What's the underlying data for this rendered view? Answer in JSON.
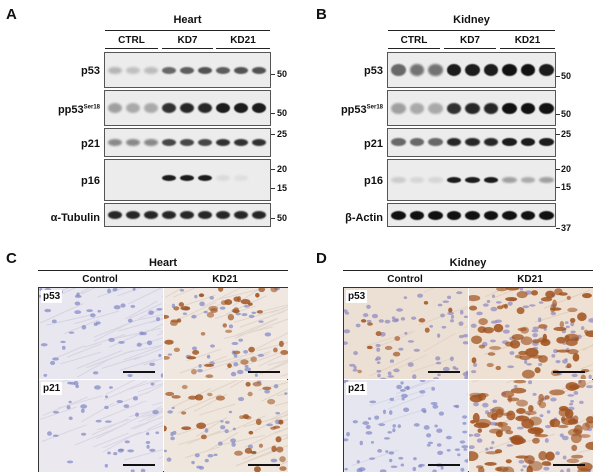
{
  "panels": {
    "A": {
      "letter": "A",
      "title": "Heart",
      "groups": [
        "CTRL",
        "KD7",
        "KD21"
      ],
      "rows": [
        {
          "label": "p53",
          "sup": "",
          "mw": [
            "50"
          ]
        },
        {
          "label": "pp53",
          "sup": "Ser18",
          "mw": [
            "50"
          ]
        },
        {
          "label": "p21",
          "sup": "",
          "mw": [
            "25"
          ]
        },
        {
          "label": "p16",
          "sup": "",
          "mw": [
            "20",
            "15"
          ]
        },
        {
          "label": "α-Tubulin",
          "sup": "",
          "mw": [
            "50"
          ]
        }
      ]
    },
    "B": {
      "letter": "B",
      "title": "Kidney",
      "groups": [
        "CTRL",
        "KD7",
        "KD21"
      ],
      "rows": [
        {
          "label": "p53",
          "sup": "",
          "mw": [
            "50"
          ]
        },
        {
          "label": "pp53",
          "sup": "Ser18",
          "mw": [
            "50"
          ]
        },
        {
          "label": "p21",
          "sup": "",
          "mw": [
            "25"
          ]
        },
        {
          "label": "p16",
          "sup": "",
          "mw": [
            "20",
            "15"
          ]
        },
        {
          "label": "β-Actin",
          "sup": "",
          "mw": [
            "37"
          ]
        }
      ]
    },
    "C": {
      "letter": "C",
      "title": "Heart",
      "cols": [
        "Control",
        "KD21"
      ],
      "rows": [
        "p53",
        "p21"
      ]
    },
    "D": {
      "letter": "D",
      "title": "Kidney",
      "cols": [
        "Control",
        "KD21"
      ],
      "rows": [
        "p53",
        "p21"
      ]
    }
  },
  "colors": {
    "hematoxylin": "#b9bfe0",
    "dab": "#a0521e",
    "blot_bg": "#ececec",
    "band": "#111111"
  }
}
